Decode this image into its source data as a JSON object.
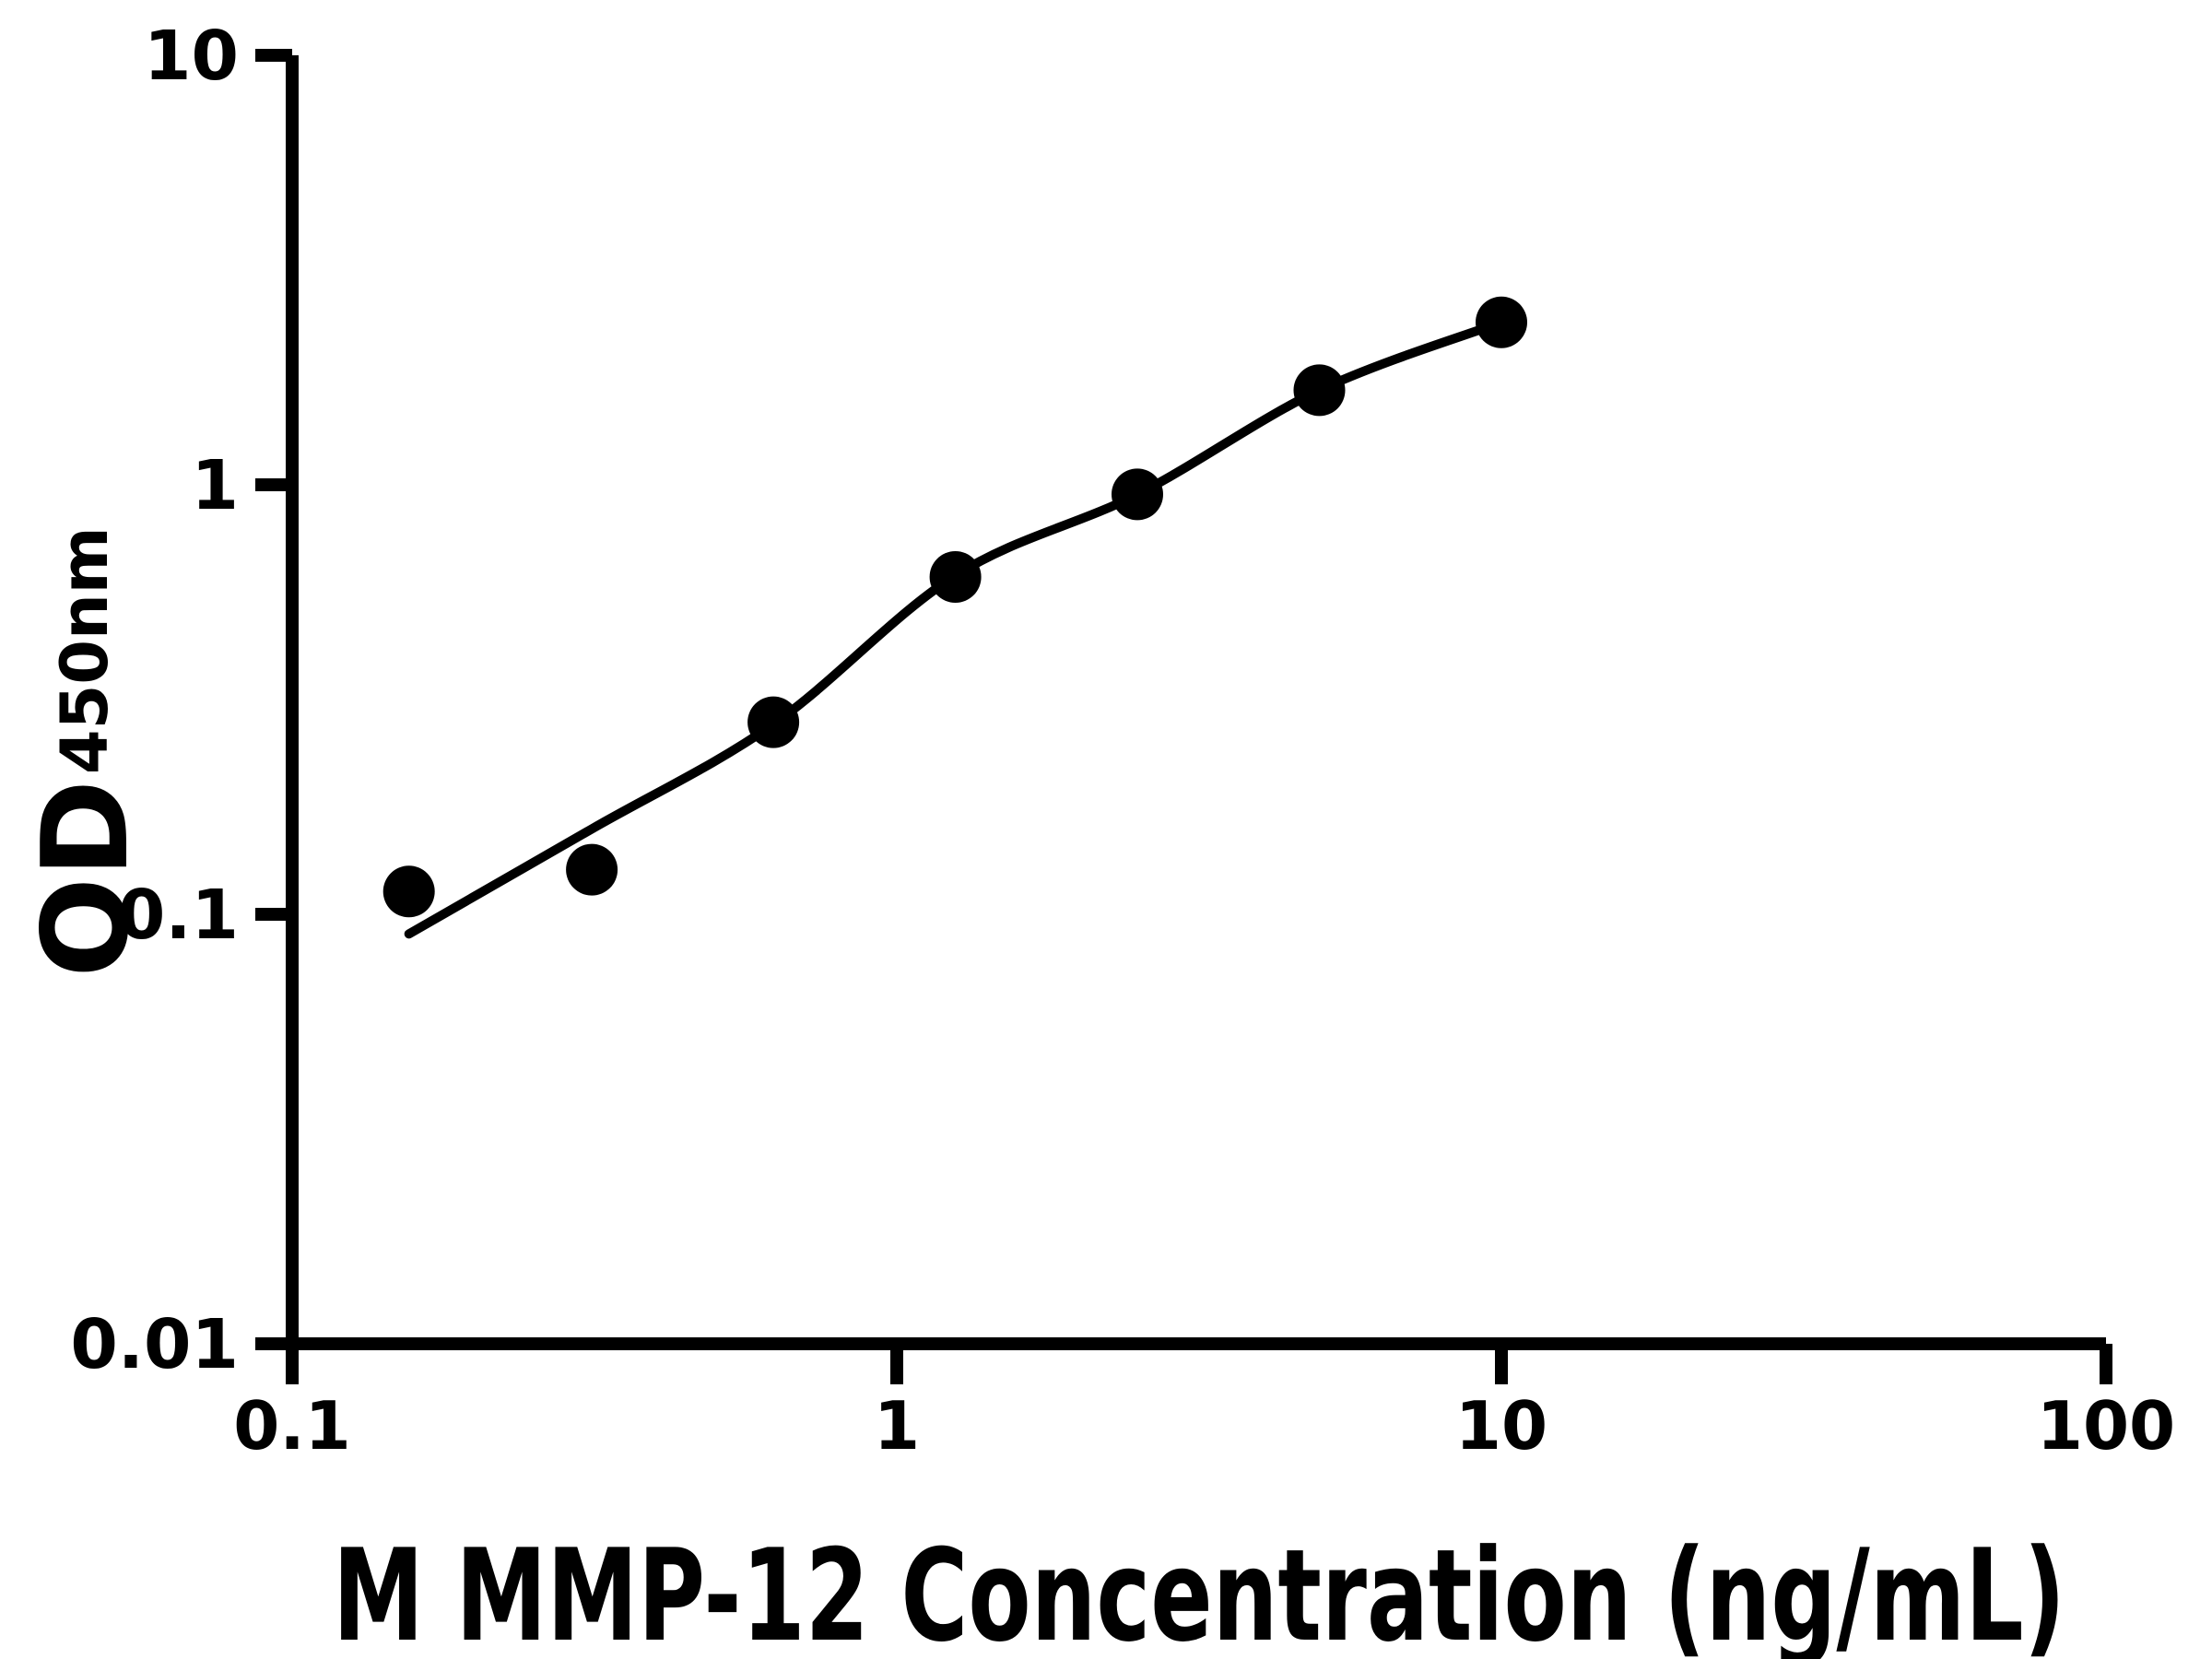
{
  "chart_data": {
    "type": "scatter",
    "title": "",
    "xlabel": "M MMP-12 Concentration (ng/mL)",
    "ylabel_main": "OD",
    "ylabel_sub": "450nm",
    "x_scale": "log",
    "y_scale": "log",
    "xlim": [
      0.1,
      100
    ],
    "ylim": [
      0.01,
      10
    ],
    "grid": false,
    "legend": "none",
    "marker_color": "#000000",
    "line_color": "#000000",
    "axis_color": "#000000",
    "background_color": "#ffffff",
    "x_ticks": [
      {
        "value": 0.1,
        "label": "0.1"
      },
      {
        "value": 1,
        "label": "1"
      },
      {
        "value": 10,
        "label": "10"
      },
      {
        "value": 100,
        "label": "100"
      }
    ],
    "y_ticks": [
      {
        "value": 0.01,
        "label": "0.01"
      },
      {
        "value": 0.1,
        "label": "0.1"
      },
      {
        "value": 1,
        "label": "1"
      },
      {
        "value": 10,
        "label": "10"
      }
    ],
    "points": [
      {
        "x": 0.156,
        "y": 0.113
      },
      {
        "x": 0.313,
        "y": 0.127
      },
      {
        "x": 0.625,
        "y": 0.28
      },
      {
        "x": 1.25,
        "y": 0.61
      },
      {
        "x": 2.5,
        "y": 0.95
      },
      {
        "x": 5,
        "y": 1.66
      },
      {
        "x": 10,
        "y": 2.39
      }
    ],
    "fit_curve": [
      {
        "x": 0.156,
        "y": 0.09
      },
      {
        "x": 0.313,
        "y": 0.158
      },
      {
        "x": 0.625,
        "y": 0.277
      },
      {
        "x": 1.25,
        "y": 0.615
      },
      {
        "x": 2.5,
        "y": 0.95
      },
      {
        "x": 5,
        "y": 1.66
      },
      {
        "x": 10,
        "y": 2.39
      }
    ]
  }
}
